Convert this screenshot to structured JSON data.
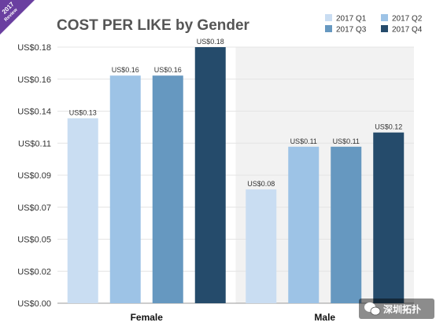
{
  "badge": {
    "year": "2017",
    "sub": "Review",
    "color": "#6a3fa0"
  },
  "watermark": {
    "text": "深圳拓扑",
    "icon": "wechat-icon"
  },
  "chart_data": {
    "type": "bar",
    "title": "COST PER LIKE by Gender",
    "categories": [
      "Female",
      "Male"
    ],
    "series": [
      {
        "name": "2017 Q1",
        "color": "#c9ddf2",
        "values": [
          0.13,
          0.08
        ],
        "labels": [
          "US$0.13",
          "US$0.08"
        ]
      },
      {
        "name": "2017 Q2",
        "color": "#9dc3e6",
        "values": [
          0.16,
          0.11
        ],
        "labels": [
          "US$0.16",
          "US$0.11"
        ]
      },
      {
        "name": "2017 Q3",
        "color": "#6698c0",
        "values": [
          0.16,
          0.11
        ],
        "labels": [
          "US$0.16",
          "US$0.11"
        ]
      },
      {
        "name": "2017 Q4",
        "color": "#254b6b",
        "values": [
          0.18,
          0.12
        ],
        "labels": [
          "US$0.18",
          "US$0.12"
        ]
      }
    ],
    "y_ticks": [
      "US$0.00",
      "US$0.02",
      "US$0.05",
      "US$0.07",
      "US$0.09",
      "US$0.11",
      "US$0.14",
      "US$0.16",
      "US$0.18"
    ],
    "ylim": [
      0,
      0.18
    ],
    "grid": true,
    "legend_position": "top-right",
    "category_background": [
      "#ffffff",
      "#f2f2f2"
    ]
  }
}
